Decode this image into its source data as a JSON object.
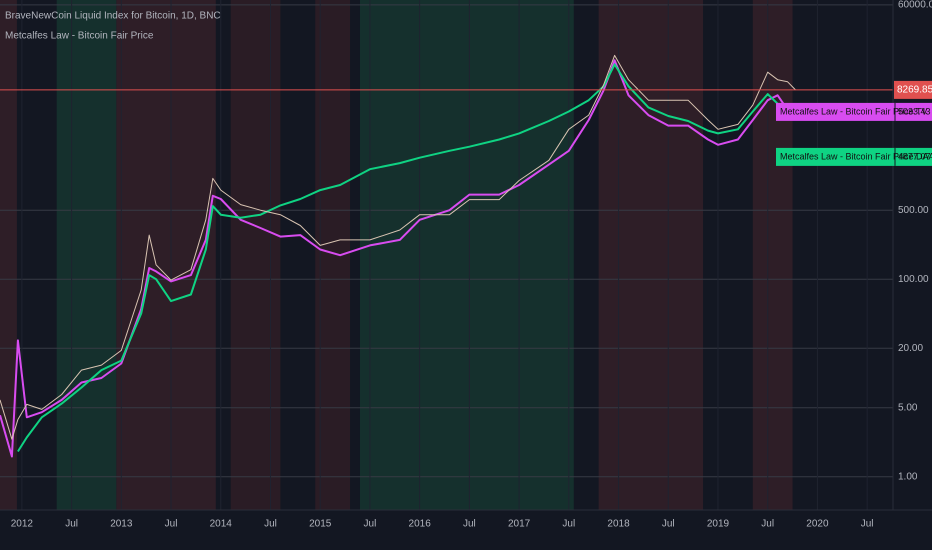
{
  "chart_data": {
    "type": "line",
    "title": "BraveNewCoin Liquid Index for Bitcoin, 1D, BNC",
    "subtitle": "Metcalfes Law - Bitcoin Fair Price",
    "log_scale": true,
    "grid": true,
    "x": [
      2011.78,
      2011.9,
      2011.96,
      2012.05,
      2012.2,
      2012.4,
      2012.6,
      2012.8,
      2013.0,
      2013.2,
      2013.28,
      2013.35,
      2013.5,
      2013.7,
      2013.85,
      2013.92,
      2014.0,
      2014.2,
      2014.4,
      2014.6,
      2014.8,
      2015.0,
      2015.2,
      2015.5,
      2015.8,
      2016.0,
      2016.3,
      2016.5,
      2016.8,
      2017.0,
      2017.3,
      2017.5,
      2017.7,
      2017.85,
      2017.96,
      2018.1,
      2018.3,
      2018.5,
      2018.7,
      2018.9,
      2019.0,
      2019.2,
      2019.35,
      2019.5,
      2019.6,
      2019.7,
      2019.78
    ],
    "series": [
      {
        "color": "#d9c4b2",
        "values": [
          6,
          2.4,
          3.8,
          5.4,
          4.8,
          6.8,
          12,
          13.5,
          19,
          78,
          280,
          140,
          98,
          125,
          400,
          1050,
          800,
          570,
          500,
          450,
          350,
          220,
          250,
          250,
          315,
          450,
          450,
          640,
          640,
          1000,
          1600,
          3300,
          4600,
          9300,
          18500,
          10500,
          6500,
          6500,
          6500,
          4100,
          3300,
          3700,
          5800,
          12500,
          10500,
          10000,
          8269.85
        ]
      },
      {
        "name": "Metcalfes Law - Bitcoin Fair Price:TV",
        "color": "#d84cf0",
        "values": [
          4.2,
          1.6,
          24,
          4,
          4.5,
          6,
          9,
          10,
          14,
          50,
          130,
          120,
          95,
          110,
          250,
          700,
          650,
          400,
          330,
          270,
          280,
          200,
          175,
          220,
          250,
          400,
          500,
          720,
          720,
          900,
          1450,
          2000,
          4100,
          8200,
          16500,
          7300,
          4600,
          3600,
          3600,
          2600,
          2300,
          2600,
          4100,
          6500,
          7300,
          5200,
          5033.43
        ]
      },
      {
        "name": "Metcalfes Law - Bitcoin Fair Price:DAA",
        "color": "#0fd383",
        "values": [
          null,
          null,
          1.8,
          2.5,
          4,
          5.5,
          8,
          12,
          15,
          45,
          110,
          100,
          60,
          70,
          200,
          550,
          450,
          420,
          450,
          560,
          650,
          800,
          900,
          1300,
          1500,
          1700,
          2000,
          2200,
          2600,
          3000,
          4000,
          5000,
          6500,
          9000,
          15000,
          9000,
          5500,
          4500,
          4000,
          3200,
          3000,
          3300,
          5000,
          7500,
          6000,
          5000,
          4877.07
        ]
      }
    ],
    "background_bands": [
      {
        "start": 2011.78,
        "end": 2011.95,
        "color": "#2e1e27"
      },
      {
        "start": 2012.35,
        "end": 2012.95,
        "color": "#15302d"
      },
      {
        "start": 2012.95,
        "end": 2013.95,
        "color": "#2e1e27"
      },
      {
        "start": 2014.1,
        "end": 2014.6,
        "color": "#2a1c25"
      },
      {
        "start": 2014.95,
        "end": 2015.3,
        "color": "#2a1c25"
      },
      {
        "start": 2015.4,
        "end": 2017.55,
        "color": "#15302d"
      },
      {
        "start": 2017.8,
        "end": 2018.85,
        "color": "#2e1e27"
      },
      {
        "start": 2019.35,
        "end": 2019.75,
        "color": "#2e1e27"
      }
    ],
    "xlim": [
      2011.78,
      2020.76
    ],
    "xticks": [
      2012,
      {
        "value": 2012.5,
        "label": "Jul"
      },
      2013,
      {
        "value": 2013.5,
        "label": "Jul"
      },
      2014,
      {
        "value": 2014.5,
        "label": "Jul"
      },
      2015,
      {
        "value": 2015.5,
        "label": "Jul"
      },
      2016,
      {
        "value": 2016.5,
        "label": "Jul"
      },
      2017,
      {
        "value": 2017.5,
        "label": "Jul"
      },
      2018,
      {
        "value": 2018.5,
        "label": "Jul"
      },
      2019,
      {
        "value": 2019.5,
        "label": "Jul"
      },
      2020,
      {
        "value": 2020.5,
        "label": "Jul"
      }
    ],
    "ylim": [
      0.46,
      67300
    ],
    "yticks": [
      {
        "value": 1,
        "label": "1.00"
      },
      {
        "value": 5,
        "label": "5.00"
      },
      {
        "value": 20,
        "label": "20.00"
      },
      {
        "value": 100,
        "label": "100.00"
      },
      {
        "value": 500,
        "label": "500.00"
      },
      {
        "value": 60000,
        "label": "60000.00"
      }
    ],
    "last_line_color": "#e0504f"
  }
}
